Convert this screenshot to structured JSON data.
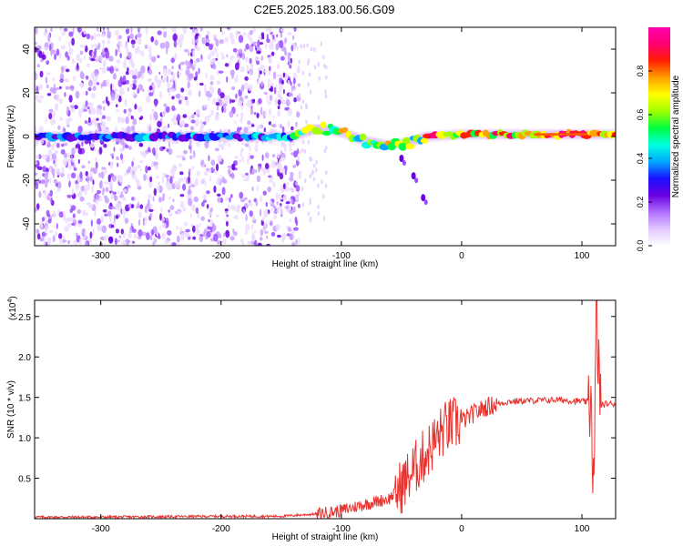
{
  "figure_title": "C2E5.2025.183.00.56.G09",
  "chart_data": [
    {
      "type": "heatmap",
      "title": "C2E5.2025.183.00.56.G09",
      "xlabel": "Height of straight line (km)",
      "ylabel": "Frequency (Hz)",
      "xlim": [
        -355,
        128
      ],
      "ylim": [
        -50,
        50
      ],
      "x_ticks": [
        -300,
        -200,
        -100,
        0,
        100
      ],
      "y_ticks": [
        -40,
        -20,
        0,
        20,
        40
      ],
      "colorbar": {
        "label": "Normalized spectral amplitude",
        "range": [
          0,
          1
        ],
        "ticks": [
          "0.0",
          "0.2",
          "0.4",
          "0.6",
          "0.8"
        ],
        "colors": [
          "#ffffff",
          "#e0c8ff",
          "#b070ff",
          "#6a00e0",
          "#1a10ff",
          "#00a8ff",
          "#00ffe0",
          "#00ff40",
          "#a0ff00",
          "#ffff00",
          "#ffa000",
          "#ff2000",
          "#ff0070",
          "#ff00b0"
        ]
      },
      "features": {
        "noise_region_x": [
          -355,
          -135
        ],
        "signal_trace": [
          {
            "x": -355,
            "y": 0
          },
          {
            "x": -140,
            "y": 0
          },
          {
            "x": -120,
            "y": 4
          },
          {
            "x": -100,
            "y": 2
          },
          {
            "x": -80,
            "y": -2
          },
          {
            "x": -60,
            "y": -4
          },
          {
            "x": -45,
            "y": -3
          },
          {
            "x": -30,
            "y": 0
          },
          {
            "x": 0,
            "y": 1
          },
          {
            "x": 60,
            "y": 1
          },
          {
            "x": 128,
            "y": 1
          }
        ],
        "descending_branch": [
          {
            "x": -50,
            "y": -10
          },
          {
            "x": -40,
            "y": -18
          },
          {
            "x": -32,
            "y": -28
          }
        ]
      }
    },
    {
      "type": "line",
      "title": "",
      "xlabel": "Height of straight line (km)",
      "ylabel": "SNR (10 * v/v)",
      "y_scale_label": "(x10",
      "y_scale_exp": "4",
      "xlim": [
        -355,
        128
      ],
      "ylim": [
        0,
        2.7
      ],
      "x_ticks": [
        -300,
        -200,
        -100,
        0,
        100
      ],
      "y_ticks": [
        "0.5",
        "1.0",
        "1.5",
        "2.0",
        "2.5"
      ],
      "color": "#e8322e",
      "series": [
        {
          "values_x": [
            -355,
            -300,
            -200,
            -150,
            -120,
            -100,
            -80,
            -60,
            -50,
            -45,
            -40,
            -30,
            -20,
            -15,
            -10,
            0,
            10,
            20,
            30,
            40,
            60,
            80,
            100,
            105,
            108,
            110,
            112,
            115,
            120,
            128
          ],
          "values_y": [
            0.02,
            0.02,
            0.03,
            0.03,
            0.06,
            0.1,
            0.18,
            0.25,
            0.4,
            0.5,
            0.6,
            0.8,
            1.0,
            1.1,
            1.15,
            1.2,
            1.3,
            1.38,
            1.42,
            1.45,
            1.46,
            1.47,
            1.45,
            1.44,
            1.5,
            0.15,
            2.65,
            1.4,
            1.42,
            1.42
          ]
        }
      ]
    }
  ]
}
